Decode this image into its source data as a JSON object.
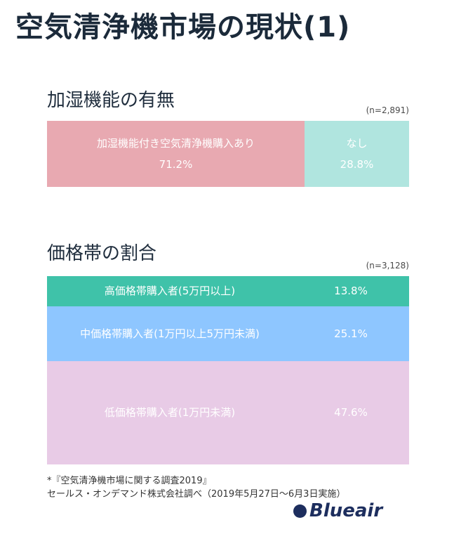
{
  "page": {
    "title": "空気清浄機市場の現状(1)"
  },
  "section1": {
    "title": "加湿機能の有無",
    "note": "(n=2,891)"
  },
  "section2": {
    "title": "価格帯の割合",
    "note": "(n=3,128)"
  },
  "footer": {
    "line1": "*『空気清浄機市場に関する調査2019』",
    "line2": "セールス・オンデマンド株式会社調べ（2019年5月27日～6月3日実施）"
  },
  "logo": {
    "text": "Blueair"
  },
  "colors": {
    "humid_yes": "#e8a9b1",
    "humid_no": "#b0e5df",
    "high": "#3fc2a9",
    "mid": "#8ec6ff",
    "low": "#e8cbe6"
  },
  "chart_data": [
    {
      "type": "bar",
      "orientation": "stacked-horizontal",
      "title": "加湿機能の有無",
      "note": "(n=2,891)",
      "categories": [
        "加湿機能付き空気清浄機購入あり",
        "なし"
      ],
      "values": [
        71.2,
        28.8
      ],
      "labels": [
        "71.2%",
        "28.8%"
      ]
    },
    {
      "type": "bar",
      "orientation": "stacked-vertical",
      "title": "価格帯の割合",
      "note": "(n=3,128)",
      "categories": [
        "高価格帯購入者(5万円以上)",
        "中価格帯購入者(1万円以上5万円未満)",
        "低価格帯購入者(1万円未満)"
      ],
      "values": [
        13.8,
        25.1,
        47.6
      ],
      "labels": [
        "13.8%",
        "25.1%",
        "47.6%"
      ]
    }
  ]
}
